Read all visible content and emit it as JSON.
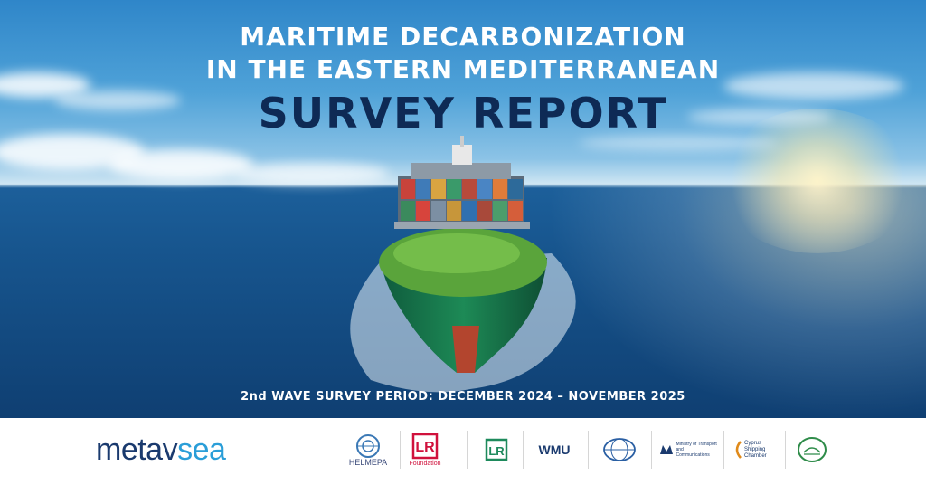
{
  "header": {
    "line1": "MARITIME DECARBONIZATION",
    "line2": "IN THE EASTERN MEDITERRANEAN",
    "line3": "SURVEY REPORT"
  },
  "period": "2nd WAVE SURVEY PERIOD: DECEMBER 2024 – NOVEMBER 2025",
  "brand": {
    "part1": "metav",
    "part2": "sea"
  },
  "partners": {
    "helmepa": "HELMEPA",
    "lr_foundation": "Foundation",
    "wmu": "WMU",
    "ministry": "Ministry of Transport and Communications",
    "cyprus_chamber": "Cyprus Shipping Chamber"
  },
  "colors": {
    "brand_dark": "#1a3a6e",
    "brand_light": "#2a9ed8",
    "title_dark": "#0e2a55",
    "lr_red": "#d0113c",
    "lr_green": "#1e8a5c"
  }
}
